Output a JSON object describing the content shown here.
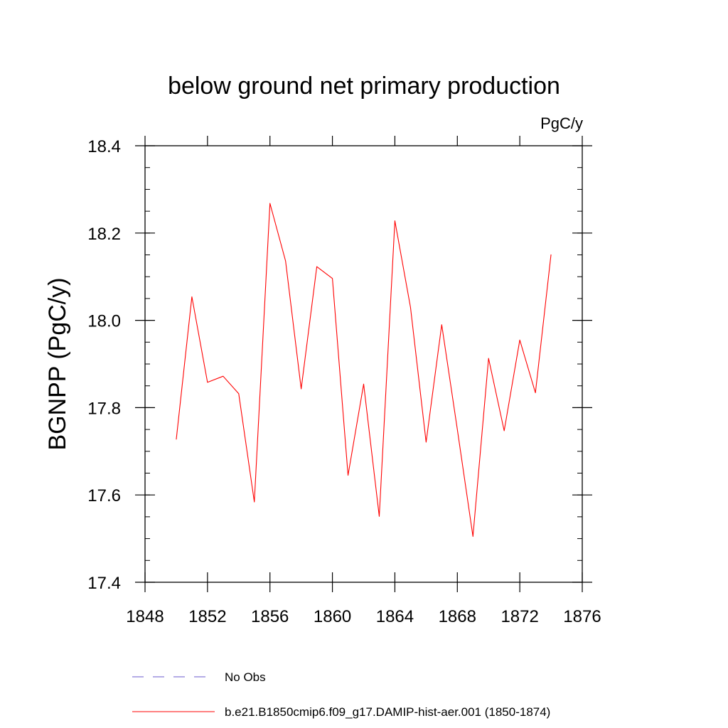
{
  "chart_data": {
    "type": "line",
    "title": "below ground net primary production",
    "units_label": "PgC/y",
    "ylabel": "BGNPP  (PgC/y)",
    "xlabel": "",
    "xlim": [
      1848,
      1876
    ],
    "ylim": [
      17.4,
      18.4
    ],
    "xticks": [
      1848,
      1852,
      1856,
      1860,
      1864,
      1868,
      1872,
      1876
    ],
    "xtick_labels": [
      "1848",
      "1852",
      "1856",
      "1860",
      "1864",
      "1868",
      "1872",
      "1876"
    ],
    "yticks": [
      17.4,
      17.6,
      17.8,
      18.0,
      18.2,
      18.4
    ],
    "ytick_labels": [
      "17.4",
      "17.6",
      "17.8",
      "18.0",
      "18.2",
      "18.4"
    ],
    "grid": false,
    "legend_placement": "bottom",
    "series": [
      {
        "name": "b.e21.B1850cmip6.f09_g17.DAMIP-hist-aer.001 (1850-1874)",
        "color": "#ff0000",
        "style": "solid",
        "x": [
          1850,
          1851,
          1852,
          1853,
          1854,
          1855,
          1856,
          1857,
          1858,
          1859,
          1860,
          1861,
          1862,
          1863,
          1864,
          1865,
          1866,
          1867,
          1868,
          1869,
          1870,
          1871,
          1872,
          1873,
          1874
        ],
        "y": [
          17.727,
          18.054,
          17.858,
          17.872,
          17.832,
          17.584,
          18.268,
          18.136,
          17.843,
          18.123,
          18.096,
          17.645,
          17.854,
          17.551,
          18.228,
          18.03,
          17.721,
          17.99,
          17.75,
          17.505,
          17.913,
          17.747,
          17.955,
          17.834,
          18.151
        ]
      }
    ],
    "legend": [
      {
        "label": "No Obs",
        "color": "#6a5acd",
        "style": "dashed"
      },
      {
        "label": "b.e21.B1850cmip6.f09_g17.DAMIP-hist-aer.001 (1850-1874)",
        "color": "#ff0000",
        "style": "solid"
      }
    ]
  }
}
